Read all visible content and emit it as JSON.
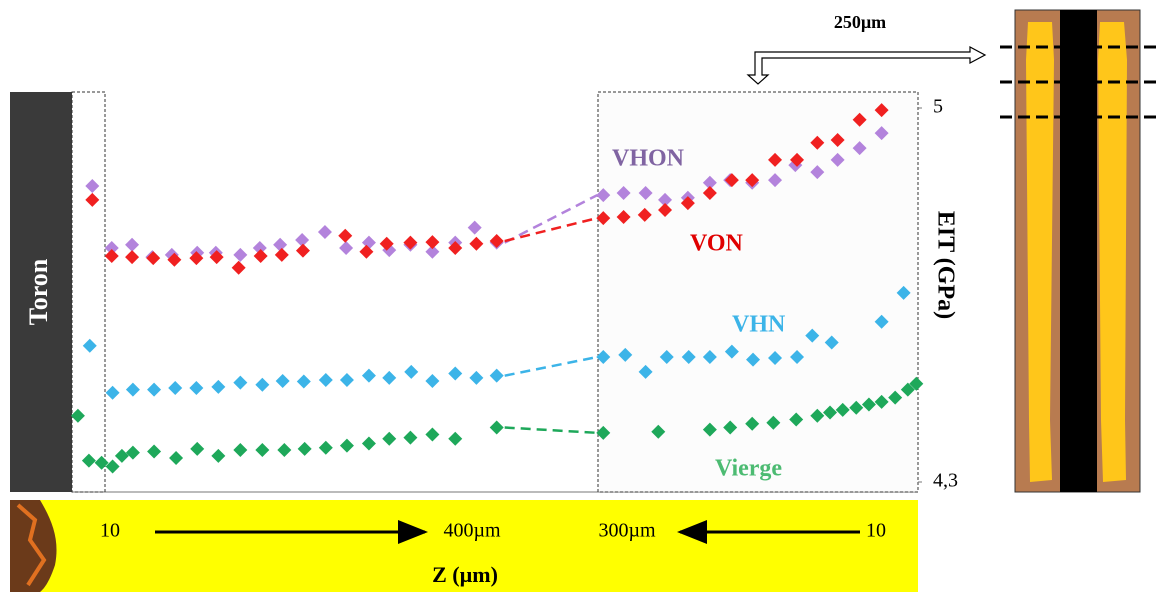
{
  "chart_data": {
    "type": "scatter",
    "side_label": "Toron",
    "y_label": "EIT (GPa)",
    "x_label": "Z (µm)",
    "x_annotations": [
      "10",
      "400µm",
      "300µm",
      "10"
    ],
    "scale_annotation": "250µm",
    "ylim": [
      4.3,
      5
    ],
    "yticks": [
      {
        "value": 5,
        "label": "5"
      },
      {
        "value": 4.3,
        "label": "4,3"
      }
    ],
    "series": [
      {
        "name": "VHON",
        "color": "#b383dc",
        "label_color": "#8064a2",
        "x": [
          2.4,
          4.7,
          7.1,
          9.5,
          11.8,
          14.8,
          17.0,
          19.9,
          22.2,
          24.6,
          27.2,
          29.9,
          32.4,
          35.1,
          37.5,
          40.0,
          42.6,
          45.3,
          47.6,
          50.2,
          62.8,
          65.2,
          67.8,
          70.1,
          72.8,
          75.4,
          77.8,
          80.4,
          83.1,
          85.5,
          88.1,
          90.5,
          93.1,
          95.7
        ],
        "values": [
          4.854,
          4.738,
          4.744,
          4.721,
          4.725,
          4.729,
          4.729,
          4.725,
          4.738,
          4.744,
          4.753,
          4.768,
          4.738,
          4.748,
          4.734,
          4.744,
          4.731,
          4.748,
          4.776,
          4.748,
          4.837,
          4.841,
          4.841,
          4.828,
          4.832,
          4.86,
          4.865,
          4.86,
          4.865,
          4.893,
          4.88,
          4.903,
          4.925,
          4.953
        ]
      },
      {
        "name": "VON",
        "color": "#f02020",
        "label_color": "#e00000",
        "x": [
          2.4,
          4.7,
          7.1,
          9.6,
          12.1,
          14.7,
          17.1,
          19.7,
          22.3,
          24.8,
          27.3,
          32.3,
          34.8,
          37.2,
          40.0,
          42.6,
          45.3,
          47.8,
          50.2,
          62.8,
          65.2,
          67.7,
          70.1,
          72.8,
          75.4,
          78.0,
          80.4,
          83.1,
          85.7,
          88.1,
          90.5,
          93.1,
          95.7
        ],
        "values": [
          4.828,
          4.723,
          4.721,
          4.719,
          4.716,
          4.719,
          4.721,
          4.701,
          4.723,
          4.725,
          4.733,
          4.761,
          4.731,
          4.746,
          4.748,
          4.749,
          4.738,
          4.746,
          4.751,
          4.794,
          4.796,
          4.8,
          4.809,
          4.822,
          4.841,
          4.865,
          4.865,
          4.903,
          4.903,
          4.935,
          4.94,
          4.978,
          4.996
        ]
      },
      {
        "name": "VHN",
        "color": "#3cb4e8",
        "label_color": "#3cb4e8",
        "x": [
          2.1,
          4.8,
          7.2,
          9.7,
          12.2,
          14.7,
          17.3,
          19.9,
          22.5,
          24.9,
          27.4,
          30.0,
          32.5,
          35.1,
          37.5,
          40.1,
          42.6,
          45.3,
          47.8,
          50.2,
          62.8,
          65.4,
          67.8,
          70.3,
          72.9,
          75.4,
          78.0,
          80.5,
          83.1,
          85.7,
          87.5,
          89.8,
          95.7,
          98.3
        ],
        "values": [
          4.555,
          4.467,
          4.473,
          4.473,
          4.476,
          4.476,
          4.478,
          4.486,
          4.482,
          4.489,
          4.488,
          4.491,
          4.491,
          4.499,
          4.495,
          4.506,
          4.489,
          4.503,
          4.495,
          4.499,
          4.534,
          4.538,
          4.506,
          4.534,
          4.534,
          4.534,
          4.544,
          4.529,
          4.532,
          4.534,
          4.574,
          4.561,
          4.6,
          4.654
        ]
      },
      {
        "name": "Vierge",
        "color": "#1ea85a",
        "label_color": "#4cbb72",
        "x": [
          0.7,
          2.0,
          3.5,
          4.8,
          5.9,
          7.2,
          9.7,
          12.3,
          14.8,
          17.3,
          19.9,
          22.5,
          25.1,
          27.5,
          30.0,
          32.5,
          35.1,
          37.5,
          40.0,
          42.6,
          45.3,
          50.2,
          62.8,
          69.3,
          75.4,
          77.8,
          80.4,
          82.9,
          85.6,
          88.1,
          89.6,
          91.1,
          92.7,
          94.2,
          95.7,
          97.3,
          98.8,
          99.8
        ],
        "values": [
          4.424,
          4.34,
          4.336,
          4.329,
          4.349,
          4.355,
          4.357,
          4.345,
          4.362,
          4.349,
          4.36,
          4.36,
          4.36,
          4.362,
          4.364,
          4.368,
          4.372,
          4.381,
          4.383,
          4.389,
          4.381,
          4.402,
          4.392,
          4.394,
          4.398,
          4.402,
          4.409,
          4.411,
          4.417,
          4.424,
          4.43,
          4.435,
          4.439,
          4.445,
          4.45,
          4.458,
          4.473,
          4.484
        ]
      }
    ]
  }
}
